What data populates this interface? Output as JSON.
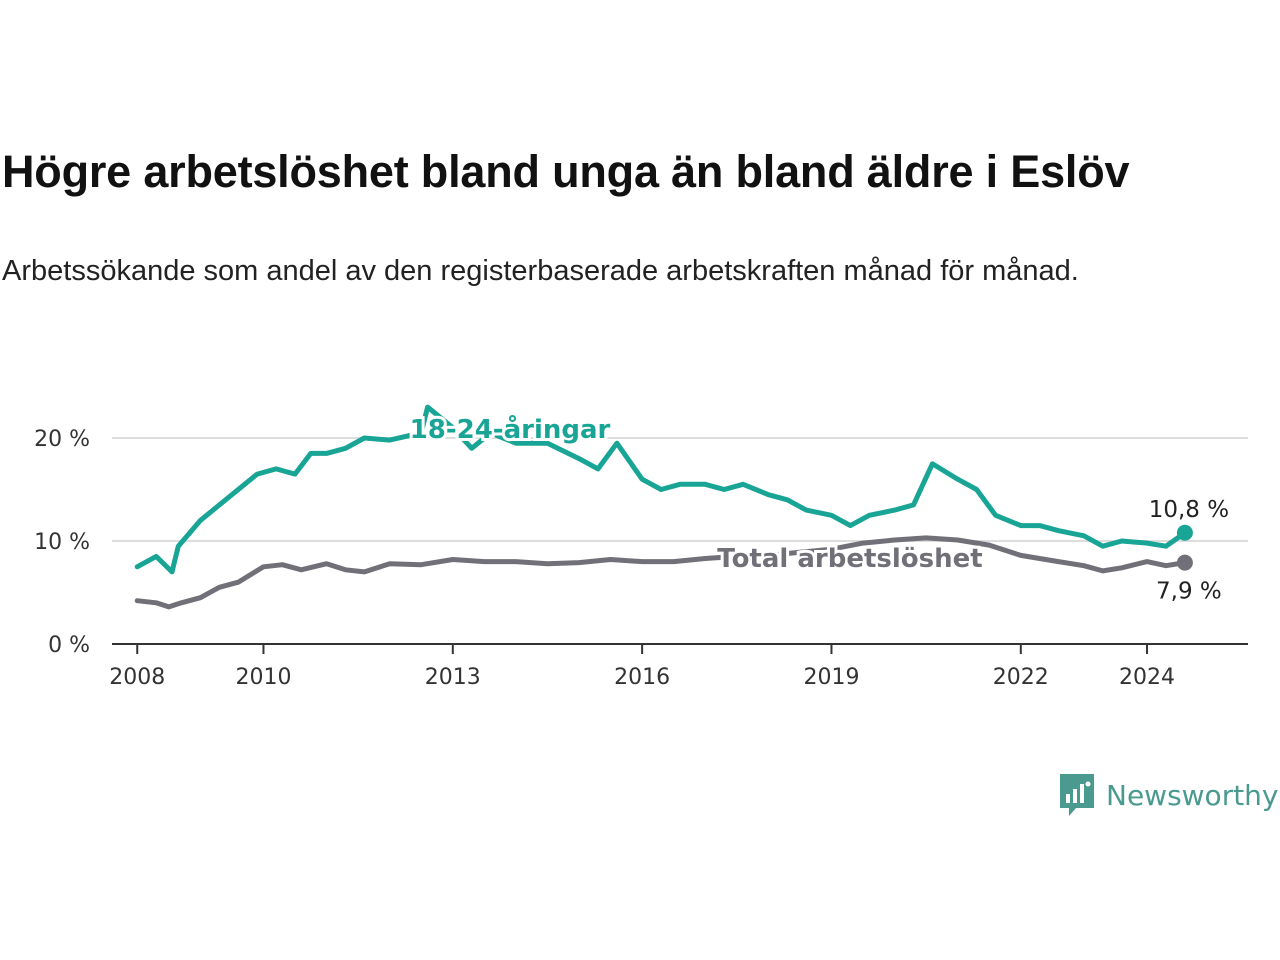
{
  "title": "Högre arbetslöshet bland unga än bland äldre i Eslöv",
  "subtitle": "Arbetssökande som andel av den registerbaserade arbetskraften månad för månad.",
  "brand": {
    "name": "Newsworthy",
    "color": "#4a9a8f"
  },
  "colors": {
    "youth": "#19a596",
    "total": "#717078",
    "grid": "#dddddd",
    "axis": "#333333"
  },
  "chart_data": {
    "type": "line",
    "title": "Högre arbetslöshet bland unga än bland äldre i Eslöv",
    "xlabel": "",
    "ylabel": "",
    "xlim": [
      2007.6,
      2025.6
    ],
    "ylim": [
      0,
      20
    ],
    "y_ticks": [
      0,
      10,
      20
    ],
    "y_tick_labels": [
      "0 %",
      "10 %",
      "20 %"
    ],
    "x_ticks": [
      2008,
      2010,
      2013,
      2016,
      2019,
      2022,
      2024
    ],
    "x_tick_labels": [
      "2008",
      "2010",
      "2013",
      "2016",
      "2019",
      "2022",
      "2024"
    ],
    "grid": "horizontal",
    "series": [
      {
        "name": "18-24-åringar",
        "color": "#19a596",
        "end_label": "10,8 %",
        "x": [
          2008.0,
          2008.3,
          2008.55,
          2008.65,
          2009.0,
          2009.5,
          2009.9,
          2010.2,
          2010.5,
          2010.75,
          2011.0,
          2011.3,
          2011.6,
          2012.0,
          2012.5,
          2012.6,
          2013.0,
          2013.3,
          2013.6,
          2014.0,
          2014.5,
          2015.0,
          2015.3,
          2015.6,
          2016.0,
          2016.3,
          2016.6,
          2017.0,
          2017.3,
          2017.6,
          2018.0,
          2018.3,
          2018.6,
          2019.0,
          2019.3,
          2019.6,
          2020.0,
          2020.3,
          2020.6,
          2021.0,
          2021.3,
          2021.6,
          2022.0,
          2022.3,
          2022.6,
          2023.0,
          2023.3,
          2023.6,
          2024.0,
          2024.3,
          2024.6
        ],
        "values": [
          7.5,
          8.5,
          7.0,
          9.5,
          12.0,
          14.5,
          16.5,
          17.0,
          16.5,
          18.5,
          18.5,
          19.0,
          20.0,
          19.8,
          20.5,
          23.0,
          21.0,
          19.0,
          20.5,
          19.5,
          19.5,
          18.0,
          17.0,
          19.5,
          16.0,
          15.0,
          15.5,
          15.5,
          15.0,
          15.5,
          14.5,
          14.0,
          13.0,
          12.5,
          11.5,
          12.5,
          13.0,
          13.5,
          17.5,
          16.0,
          15.0,
          12.5,
          11.5,
          11.5,
          11.0,
          10.5,
          9.5,
          10.0,
          9.8,
          9.5,
          10.8
        ]
      },
      {
        "name": "Total arbetslöshet",
        "color": "#717078",
        "end_label": "7,9 %",
        "x": [
          2008.0,
          2008.3,
          2008.5,
          2008.7,
          2009.0,
          2009.3,
          2009.6,
          2010.0,
          2010.3,
          2010.6,
          2011.0,
          2011.3,
          2011.6,
          2012.0,
          2012.5,
          2013.0,
          2013.5,
          2014.0,
          2014.5,
          2015.0,
          2015.5,
          2016.0,
          2016.5,
          2017.0,
          2017.5,
          2018.0,
          2018.5,
          2019.0,
          2019.5,
          2020.0,
          2020.5,
          2021.0,
          2021.5,
          2022.0,
          2022.5,
          2023.0,
          2023.3,
          2023.6,
          2024.0,
          2024.3,
          2024.6
        ],
        "values": [
          4.2,
          4.0,
          3.6,
          4.0,
          4.5,
          5.5,
          6.0,
          7.5,
          7.7,
          7.2,
          7.8,
          7.2,
          7.0,
          7.8,
          7.7,
          8.2,
          8.0,
          8.0,
          7.8,
          7.9,
          8.2,
          8.0,
          8.0,
          8.3,
          8.5,
          8.6,
          8.9,
          9.2,
          9.8,
          10.1,
          10.3,
          10.1,
          9.6,
          8.6,
          8.1,
          7.6,
          7.1,
          7.4,
          8.0,
          7.6,
          7.9
        ]
      }
    ]
  }
}
